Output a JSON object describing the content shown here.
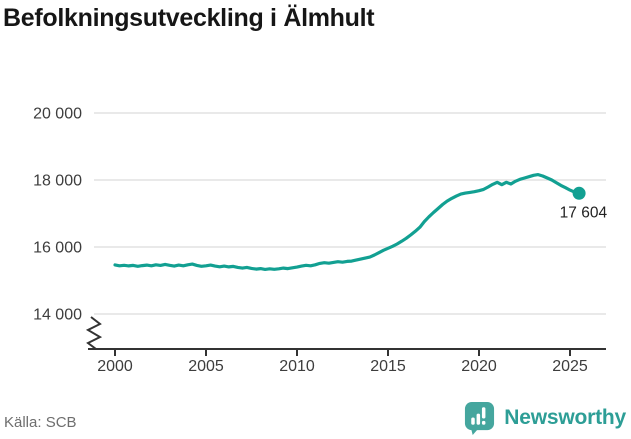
{
  "title": "Befolkningsutveckling i Älmhult",
  "source": {
    "text": "Källa: SCB"
  },
  "branding": {
    "name": "Newsworthy",
    "icon": "bar-chart-speech-bubble-icon"
  },
  "colors": {
    "line": "#12a092",
    "grid": "#dcdcdc",
    "axis": "#333333",
    "brand_icon": "#45a69e",
    "brand_text": "#2d9e96",
    "title_text": "#161616",
    "tick_text": "#3d3d3d",
    "source_text": "#6e6e6e"
  },
  "chart_data": {
    "type": "line",
    "title": "Befolkningsutveckling i Älmhult",
    "xlabel": "",
    "ylabel": "",
    "grid": "horizontal-only",
    "legend": "none",
    "y_axis_break": true,
    "xlim": [
      2000,
      2027
    ],
    "ylim": [
      14000,
      20000
    ],
    "x_ticks": [
      2000,
      2005,
      2010,
      2015,
      2020,
      2025
    ],
    "x_tick_labels": [
      "2000",
      "2005",
      "2010",
      "2015",
      "2020",
      "2025"
    ],
    "y_ticks": [
      20000,
      18000,
      16000,
      14000
    ],
    "y_tick_labels": [
      "20 000",
      "18 000",
      "16 000",
      "14 000"
    ],
    "last_value": 17604,
    "last_value_label": "17 604",
    "x": [
      2000,
      2000.25,
      2000.5,
      2000.75,
      2001,
      2001.25,
      2001.5,
      2001.75,
      2002,
      2002.25,
      2002.5,
      2002.75,
      2003,
      2003.25,
      2003.5,
      2003.75,
      2004,
      2004.25,
      2004.5,
      2004.75,
      2005,
      2005.25,
      2005.5,
      2005.75,
      2006,
      2006.25,
      2006.5,
      2006.75,
      2007,
      2007.25,
      2007.5,
      2007.75,
      2008,
      2008.25,
      2008.5,
      2008.75,
      2009,
      2009.25,
      2009.5,
      2009.75,
      2010,
      2010.25,
      2010.5,
      2010.75,
      2011,
      2011.25,
      2011.5,
      2011.75,
      2012,
      2012.25,
      2012.5,
      2012.75,
      2013,
      2013.25,
      2013.5,
      2013.75,
      2014,
      2014.25,
      2014.5,
      2014.75,
      2015,
      2015.25,
      2015.5,
      2015.75,
      2016,
      2016.25,
      2016.5,
      2016.75,
      2017,
      2017.25,
      2017.5,
      2017.75,
      2018,
      2018.25,
      2018.5,
      2018.75,
      2019,
      2019.25,
      2019.5,
      2019.75,
      2020,
      2020.25,
      2020.5,
      2020.75,
      2021,
      2021.25,
      2021.5,
      2021.75,
      2022,
      2022.25,
      2022.5,
      2022.75,
      2023,
      2023.25,
      2023.5,
      2023.75,
      2024,
      2024.25,
      2024.5,
      2024.75,
      2025,
      2025.25,
      2025.5
    ],
    "values": [
      15465,
      15440,
      15455,
      15435,
      15450,
      15425,
      15445,
      15460,
      15440,
      15470,
      15450,
      15480,
      15455,
      15430,
      15460,
      15440,
      15470,
      15490,
      15450,
      15425,
      15440,
      15460,
      15430,
      15410,
      15430,
      15405,
      15420,
      15390,
      15370,
      15390,
      15360,
      15340,
      15355,
      15330,
      15350,
      15335,
      15350,
      15370,
      15355,
      15380,
      15400,
      15430,
      15455,
      15440,
      15470,
      15510,
      15530,
      15515,
      15540,
      15560,
      15545,
      15570,
      15580,
      15610,
      15640,
      15670,
      15700,
      15760,
      15830,
      15900,
      15960,
      16020,
      16090,
      16170,
      16260,
      16360,
      16470,
      16590,
      16760,
      16900,
      17030,
      17150,
      17270,
      17370,
      17450,
      17520,
      17580,
      17610,
      17630,
      17650,
      17680,
      17720,
      17790,
      17870,
      17930,
      17860,
      17930,
      17880,
      17960,
      18020,
      18060,
      18100,
      18140,
      18160,
      18120,
      18060,
      18000,
      17920,
      17840,
      17770,
      17700,
      17640,
      17604
    ]
  }
}
